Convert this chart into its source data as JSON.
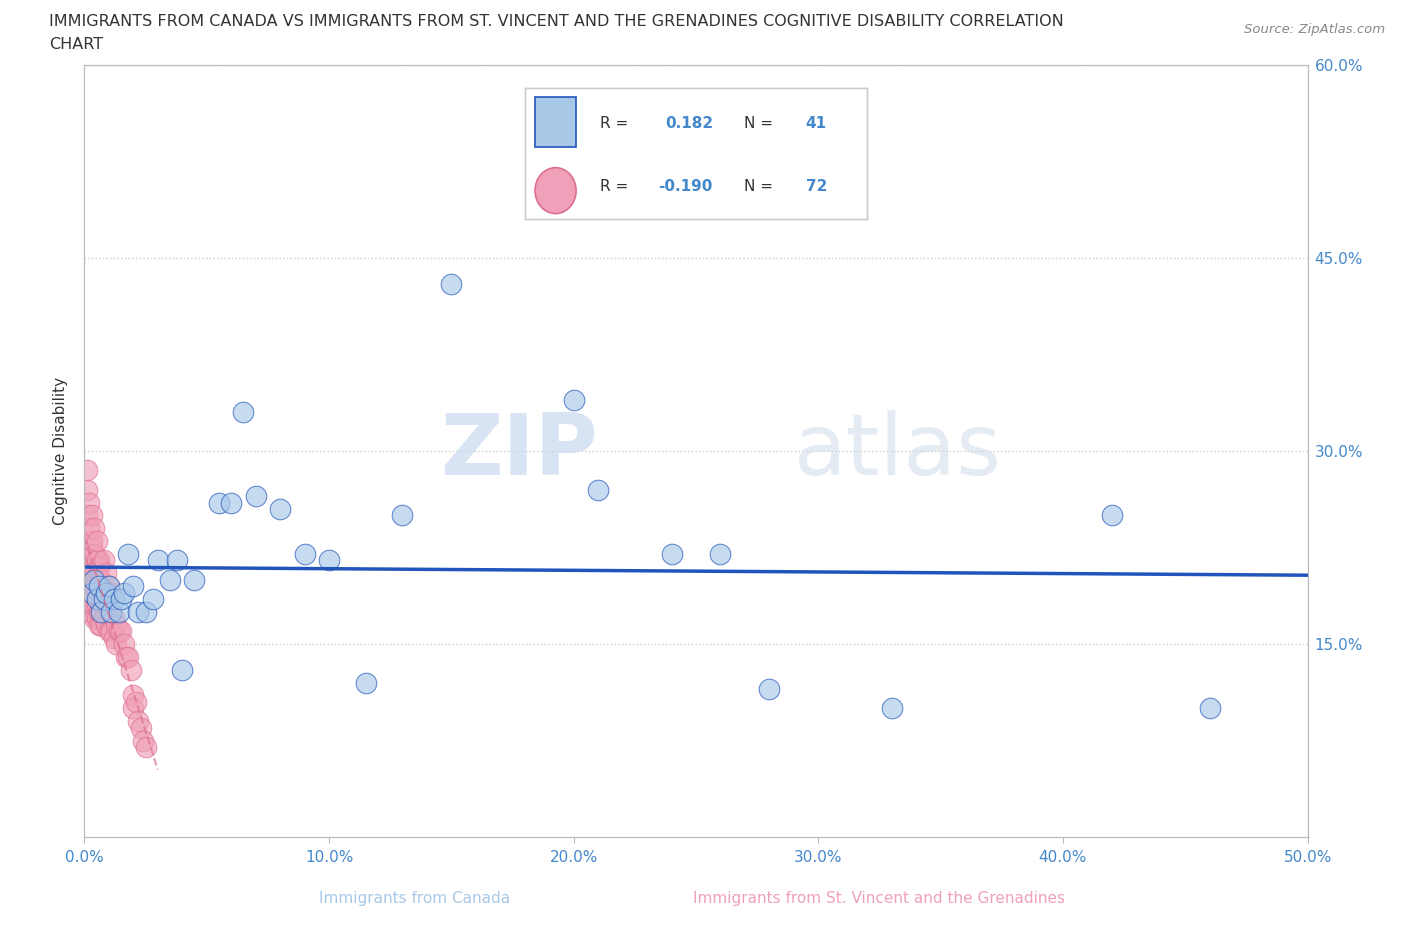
{
  "title_line1": "IMMIGRANTS FROM CANADA VS IMMIGRANTS FROM ST. VINCENT AND THE GRENADINES COGNITIVE DISABILITY CORRELATION",
  "title_line2": "CHART",
  "source_text": "Source: ZipAtlas.com",
  "xlabel_canada": "Immigrants from Canada",
  "xlabel_svg": "Immigrants from St. Vincent and the Grenadines",
  "ylabel": "Cognitive Disability",
  "watermark_zip": "ZIP",
  "watermark_atlas": "atlas",
  "r_canada": 0.182,
  "n_canada": 41,
  "r_svg": -0.19,
  "n_svg": 72,
  "xlim": [
    0.0,
    0.5
  ],
  "ylim": [
    0.0,
    0.6
  ],
  "xticks": [
    0.0,
    0.1,
    0.2,
    0.3,
    0.4,
    0.5
  ],
  "yticks": [
    0.0,
    0.15,
    0.3,
    0.45,
    0.6
  ],
  "color_canada": "#a8c8e8",
  "color_svg": "#f0a0b8",
  "trendline_canada": "#2255bb",
  "trendline_svg": "#dd7090",
  "background_color": "#ffffff",
  "grid_color": "#cccccc",
  "axis_color": "#bbbbbb",
  "title_color": "#333333",
  "tick_color": "#4488cc",
  "canada_x": [
    0.003,
    0.004,
    0.005,
    0.006,
    0.007,
    0.008,
    0.009,
    0.01,
    0.011,
    0.012,
    0.014,
    0.015,
    0.016,
    0.018,
    0.02,
    0.022,
    0.025,
    0.028,
    0.03,
    0.035,
    0.038,
    0.04,
    0.045,
    0.055,
    0.06,
    0.065,
    0.07,
    0.08,
    0.09,
    0.1,
    0.115,
    0.13,
    0.15,
    0.2,
    0.21,
    0.24,
    0.26,
    0.28,
    0.33,
    0.42,
    0.46
  ],
  "canada_y": [
    0.19,
    0.2,
    0.185,
    0.195,
    0.175,
    0.185,
    0.19,
    0.195,
    0.175,
    0.185,
    0.175,
    0.185,
    0.19,
    0.22,
    0.195,
    0.175,
    0.175,
    0.185,
    0.215,
    0.2,
    0.215,
    0.13,
    0.2,
    0.26,
    0.26,
    0.33,
    0.265,
    0.255,
    0.22,
    0.215,
    0.12,
    0.25,
    0.43,
    0.34,
    0.27,
    0.22,
    0.22,
    0.115,
    0.1,
    0.25,
    0.1
  ],
  "svg_x": [
    0.001,
    0.001,
    0.001,
    0.002,
    0.002,
    0.002,
    0.002,
    0.003,
    0.003,
    0.003,
    0.003,
    0.004,
    0.004,
    0.004,
    0.004,
    0.005,
    0.005,
    0.005,
    0.005,
    0.005,
    0.006,
    0.006,
    0.006,
    0.006,
    0.006,
    0.007,
    0.007,
    0.007,
    0.007,
    0.008,
    0.008,
    0.008,
    0.009,
    0.009,
    0.01,
    0.01,
    0.01,
    0.011,
    0.011,
    0.012,
    0.012,
    0.013,
    0.013,
    0.014,
    0.015,
    0.016,
    0.017,
    0.018,
    0.019,
    0.02,
    0.02,
    0.021,
    0.022,
    0.023,
    0.024,
    0.025,
    0.001,
    0.001,
    0.002,
    0.002,
    0.003,
    0.003,
    0.004,
    0.004,
    0.005,
    0.005,
    0.006,
    0.007,
    0.008,
    0.009,
    0.01,
    0.011
  ],
  "svg_y": [
    0.25,
    0.22,
    0.195,
    0.22,
    0.2,
    0.185,
    0.175,
    0.225,
    0.205,
    0.19,
    0.175,
    0.21,
    0.195,
    0.18,
    0.17,
    0.215,
    0.2,
    0.19,
    0.18,
    0.17,
    0.215,
    0.2,
    0.185,
    0.175,
    0.165,
    0.195,
    0.185,
    0.175,
    0.165,
    0.19,
    0.18,
    0.17,
    0.185,
    0.165,
    0.185,
    0.175,
    0.16,
    0.175,
    0.16,
    0.17,
    0.155,
    0.165,
    0.15,
    0.16,
    0.16,
    0.15,
    0.14,
    0.14,
    0.13,
    0.11,
    0.1,
    0.105,
    0.09,
    0.085,
    0.075,
    0.07,
    0.27,
    0.285,
    0.24,
    0.26,
    0.23,
    0.25,
    0.22,
    0.24,
    0.215,
    0.23,
    0.21,
    0.2,
    0.215,
    0.205,
    0.195,
    0.19
  ]
}
